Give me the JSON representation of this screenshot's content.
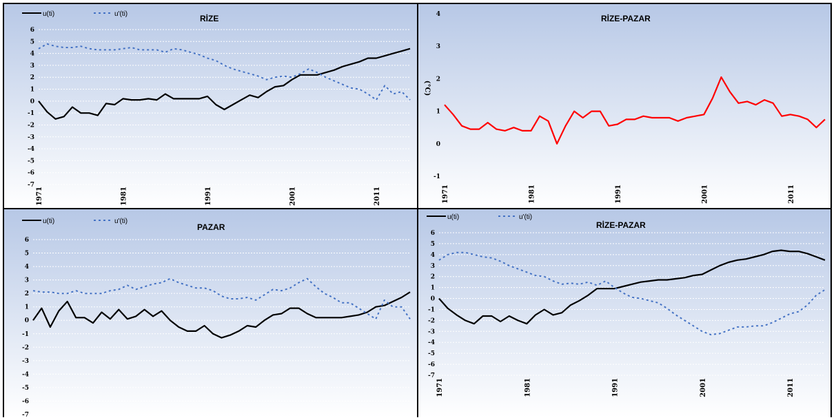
{
  "chart_data": [
    {
      "id": "rize",
      "type": "line",
      "title": "RİZE",
      "x": [
        1971,
        1972,
        1973,
        1974,
        1975,
        1976,
        1977,
        1978,
        1979,
        1980,
        1981,
        1982,
        1983,
        1984,
        1985,
        1986,
        1987,
        1988,
        1989,
        1990,
        1991,
        1992,
        1993,
        1994,
        1995,
        1996,
        1997,
        1998,
        1999,
        2000,
        2001,
        2002,
        2003,
        2004,
        2005,
        2006,
        2007,
        2008,
        2009,
        2010,
        2011,
        2012,
        2013,
        2014,
        2015
      ],
      "x_ticks": [
        "1971",
        "1981",
        "1991",
        "2001",
        "2011"
      ],
      "ylim": [
        -7,
        6
      ],
      "y_ticks": [
        "6",
        "5",
        "4",
        "3",
        "2",
        "1",
        "0",
        "-1",
        "-2",
        "-3",
        "-4",
        "-5",
        "-6",
        "-7"
      ],
      "grid": true,
      "legend_position": "top-left",
      "series": [
        {
          "name": "u(ti)",
          "color": "#000000",
          "style": "solid",
          "values": [
            0,
            -0.9,
            -1.5,
            -1.3,
            -0.5,
            -1.0,
            -1.0,
            -1.2,
            -0.2,
            -0.3,
            0.2,
            0.1,
            0.1,
            0.2,
            0.1,
            0.6,
            0.2,
            0.2,
            0.2,
            0.2,
            0.4,
            -0.3,
            -0.7,
            -0.3,
            0.1,
            0.5,
            0.3,
            0.8,
            1.2,
            1.3,
            1.8,
            2.2,
            2.2,
            2.2,
            2.4,
            2.6,
            2.9,
            3.1,
            3.3,
            3.6,
            3.6,
            3.8,
            4.0,
            4.2,
            4.4
          ]
        },
        {
          "name": "u'(ti)",
          "color": "#4472C4",
          "style": "dashed",
          "values": [
            4.4,
            4.8,
            4.6,
            4.5,
            4.5,
            4.6,
            4.4,
            4.3,
            4.3,
            4.3,
            4.4,
            4.5,
            4.3,
            4.3,
            4.3,
            4.1,
            4.4,
            4.3,
            4.1,
            3.9,
            3.6,
            3.4,
            3.0,
            2.7,
            2.5,
            2.3,
            2.1,
            1.8,
            2.0,
            2.1,
            2.0,
            2.3,
            2.7,
            2.4,
            2.0,
            1.7,
            1.4,
            1.1,
            1.0,
            0.6,
            0.1,
            1.3,
            0.6,
            0.8,
            0.1
          ]
        }
      ]
    },
    {
      "id": "rize-pazar-diff",
      "type": "line",
      "title": "RİZE-PAZAR",
      "ylabel": "(°C)",
      "x": [
        1971,
        1972,
        1973,
        1974,
        1975,
        1976,
        1977,
        1978,
        1979,
        1980,
        1981,
        1982,
        1983,
        1984,
        1985,
        1986,
        1987,
        1988,
        1989,
        1990,
        1991,
        1992,
        1993,
        1994,
        1995,
        1996,
        1997,
        1998,
        1999,
        2000,
        2001,
        2002,
        2003,
        2004,
        2005,
        2006,
        2007,
        2008,
        2009,
        2010,
        2011,
        2012,
        2013,
        2014,
        2015
      ],
      "x_ticks": [
        "1971",
        "1981",
        "1991",
        "2001",
        "2011"
      ],
      "ylim": [
        -1,
        4
      ],
      "y_ticks": [
        "4",
        "3",
        "2",
        "1",
        "0",
        "-1"
      ],
      "grid": false,
      "series": [
        {
          "name": "",
          "color": "#FF0000",
          "style": "solid",
          "values": [
            1.2,
            0.9,
            0.55,
            0.45,
            0.45,
            0.65,
            0.45,
            0.4,
            0.5,
            0.4,
            0.4,
            0.85,
            0.7,
            0.0,
            0.55,
            1.0,
            0.8,
            1.0,
            1.0,
            0.55,
            0.6,
            0.75,
            0.75,
            0.85,
            0.8,
            0.8,
            0.8,
            0.7,
            0.8,
            0.85,
            0.9,
            1.4,
            2.05,
            1.6,
            1.25,
            1.3,
            1.2,
            1.35,
            1.25,
            0.85,
            0.9,
            0.85,
            0.75,
            0.5,
            0.75
          ]
        }
      ]
    },
    {
      "id": "pazar",
      "type": "line",
      "title": "PAZAR",
      "x": [
        1971,
        1972,
        1973,
        1974,
        1975,
        1976,
        1977,
        1978,
        1979,
        1980,
        1981,
        1982,
        1983,
        1984,
        1985,
        1986,
        1987,
        1988,
        1989,
        1990,
        1991,
        1992,
        1993,
        1994,
        1995,
        1996,
        1997,
        1998,
        1999,
        2000,
        2001,
        2002,
        2003,
        2004,
        2005,
        2006,
        2007,
        2008,
        2009,
        2010,
        2011,
        2012,
        2013,
        2014,
        2015
      ],
      "x_ticks": [
        "1971",
        "1981",
        "1991",
        "2001",
        "2011"
      ],
      "ylim": [
        -7,
        6
      ],
      "y_ticks": [
        "6",
        "5",
        "4",
        "3",
        "2",
        "1",
        "0",
        "-1",
        "-2",
        "-3",
        "-4",
        "-5",
        "-6",
        "-7"
      ],
      "grid": true,
      "legend_position": "top-left",
      "series": [
        {
          "name": "u(ti)",
          "color": "#000000",
          "style": "solid",
          "values": [
            0,
            0.9,
            -0.5,
            0.7,
            1.4,
            0.2,
            0.2,
            -0.2,
            0.6,
            0.1,
            0.8,
            0.1,
            0.3,
            0.8,
            0.3,
            0.7,
            0.0,
            -0.5,
            -0.8,
            -0.8,
            -0.4,
            -1.0,
            -1.3,
            -1.1,
            -0.8,
            -0.4,
            -0.5,
            0.0,
            0.4,
            0.5,
            0.9,
            0.9,
            0.5,
            0.2,
            0.2,
            0.2,
            0.2,
            0.3,
            0.4,
            0.6,
            1.0,
            1.1,
            1.4,
            1.7,
            2.1
          ]
        },
        {
          "name": "u'(ti)",
          "color": "#4472C4",
          "style": "dashed",
          "values": [
            2.2,
            2.1,
            2.1,
            2.0,
            2.0,
            2.2,
            2.0,
            2.0,
            2.0,
            2.2,
            2.3,
            2.6,
            2.3,
            2.5,
            2.7,
            2.8,
            3.1,
            2.8,
            2.6,
            2.4,
            2.4,
            2.2,
            1.8,
            1.6,
            1.6,
            1.7,
            1.5,
            1.9,
            2.3,
            2.2,
            2.4,
            2.8,
            3.1,
            2.5,
            2.0,
            1.7,
            1.3,
            1.3,
            0.9,
            0.5,
            0.1,
            1.5,
            1.0,
            1.0,
            0.1
          ]
        }
      ]
    },
    {
      "id": "rize-pazar",
      "type": "line",
      "title": "RİZE-PAZAR",
      "x": [
        1971,
        1972,
        1973,
        1974,
        1975,
        1976,
        1977,
        1978,
        1979,
        1980,
        1981,
        1982,
        1983,
        1984,
        1985,
        1986,
        1987,
        1988,
        1989,
        1990,
        1991,
        1992,
        1993,
        1994,
        1995,
        1996,
        1997,
        1998,
        1999,
        2000,
        2001,
        2002,
        2003,
        2004,
        2005,
        2006,
        2007,
        2008,
        2009,
        2010,
        2011,
        2012,
        2013,
        2014,
        2015
      ],
      "x_ticks": [
        "1971",
        "1981",
        "1991",
        "2001",
        "2011"
      ],
      "ylim": [
        -7,
        6
      ],
      "y_ticks": [
        "6",
        "5",
        "4",
        "3",
        "2",
        "1",
        "0",
        "-1",
        "-2",
        "-3",
        "-4",
        "-5",
        "-6",
        "-7"
      ],
      "grid": true,
      "legend_position": "top-left",
      "series": [
        {
          "name": "u(ti)",
          "color": "#000000",
          "style": "solid",
          "values": [
            0,
            -0.9,
            -1.5,
            -2.0,
            -2.3,
            -1.6,
            -1.6,
            -2.1,
            -1.6,
            -2.0,
            -2.3,
            -1.5,
            -1.0,
            -1.5,
            -1.3,
            -0.6,
            -0.2,
            0.3,
            0.9,
            0.9,
            0.9,
            1.1,
            1.3,
            1.5,
            1.6,
            1.7,
            1.7,
            1.8,
            1.9,
            2.1,
            2.2,
            2.6,
            3.0,
            3.3,
            3.5,
            3.6,
            3.8,
            4.0,
            4.3,
            4.4,
            4.3,
            4.3,
            4.1,
            3.8,
            3.5
          ]
        },
        {
          "name": "u'(ti)",
          "color": "#4472C4",
          "style": "dashed",
          "values": [
            3.5,
            4.0,
            4.2,
            4.2,
            4.0,
            3.8,
            3.7,
            3.4,
            3.0,
            2.7,
            2.4,
            2.1,
            2.0,
            1.6,
            1.3,
            1.4,
            1.3,
            1.5,
            1.2,
            1.6,
            1.0,
            0.5,
            0.1,
            0.0,
            -0.2,
            -0.4,
            -0.9,
            -1.5,
            -2.0,
            -2.5,
            -3.0,
            -3.3,
            -3.2,
            -2.9,
            -2.6,
            -2.6,
            -2.5,
            -2.5,
            -2.2,
            -1.8,
            -1.4,
            -1.2,
            -0.6,
            0.3,
            0.8
          ]
        }
      ]
    }
  ]
}
